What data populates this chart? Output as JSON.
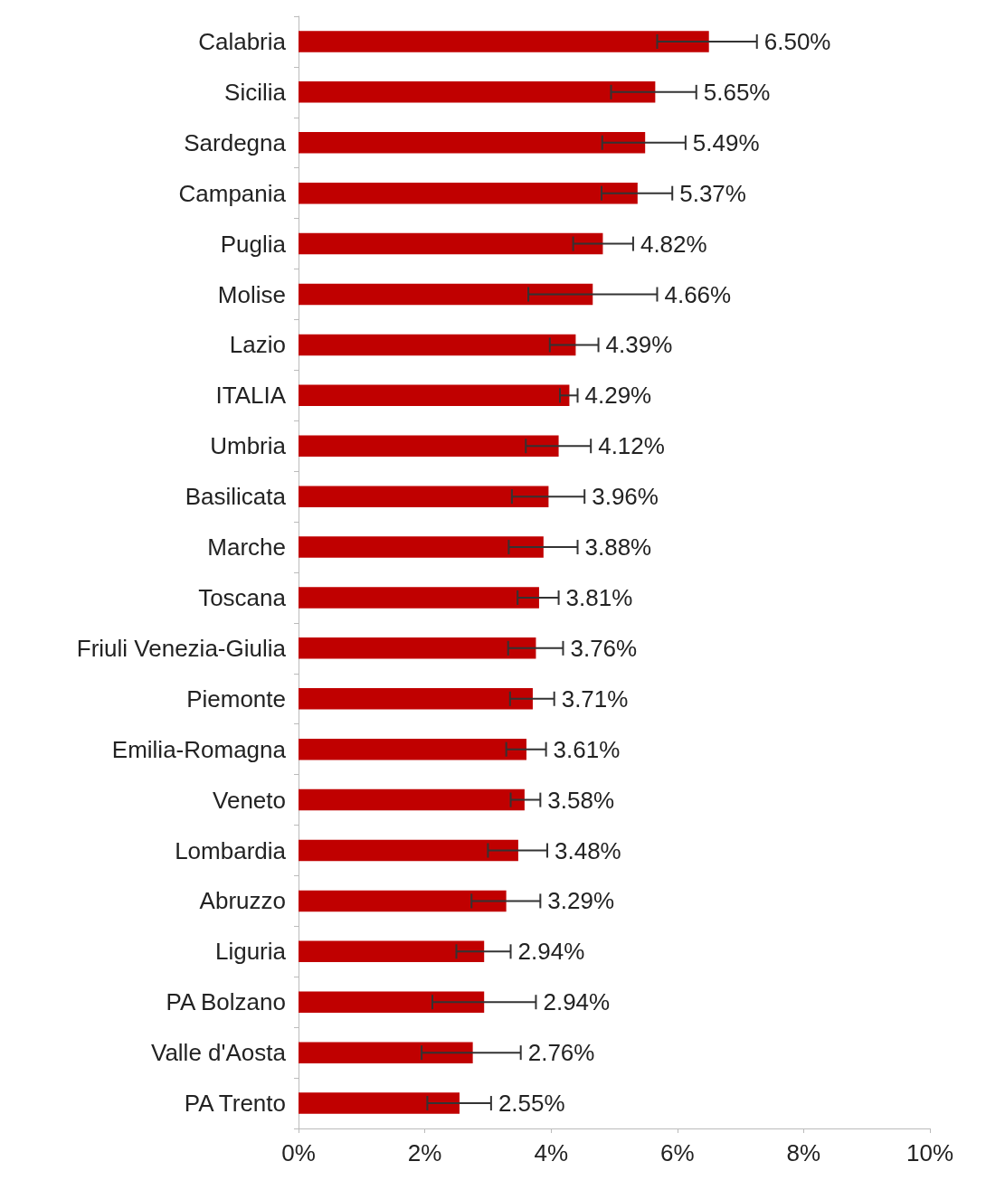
{
  "chart_data": {
    "type": "bar",
    "orientation": "horizontal",
    "color": "#c00000",
    "grid": false,
    "categories": [
      "Calabria",
      "Sicilia",
      "Sardegna",
      "Campania",
      "Puglia",
      "Molise",
      "Lazio",
      "ITALIA",
      "Umbria",
      "Basilicata",
      "Marche",
      "Toscana",
      "Friuli Venezia-Giulia",
      "Piemonte",
      "Emilia-Romagna",
      "Veneto",
      "Lombardia",
      "Abruzzo",
      "Liguria",
      "PA Bolzano",
      "Valle d'Aosta",
      "PA Trento"
    ],
    "values": [
      6.5,
      5.65,
      5.49,
      5.37,
      4.82,
      4.66,
      4.39,
      4.29,
      4.12,
      3.96,
      3.88,
      3.81,
      3.76,
      3.71,
      3.61,
      3.58,
      3.48,
      3.29,
      2.94,
      2.94,
      2.76,
      2.55
    ],
    "value_labels": [
      "6.50%",
      "5.65%",
      "5.49%",
      "5.37%",
      "4.82%",
      "4.66%",
      "4.39%",
      "4.29%",
      "4.12%",
      "3.96%",
      "3.88%",
      "3.81%",
      "3.76%",
      "3.71%",
      "3.61%",
      "3.58%",
      "3.48%",
      "3.29%",
      "2.94%",
      "2.94%",
      "2.76%",
      "2.55%"
    ],
    "errors": [
      [
        5.68,
        7.26
      ],
      [
        4.95,
        6.3
      ],
      [
        4.81,
        6.13
      ],
      [
        4.8,
        5.92
      ],
      [
        4.35,
        5.3
      ],
      [
        3.64,
        5.68
      ],
      [
        3.98,
        4.75
      ],
      [
        4.14,
        4.42
      ],
      [
        3.6,
        4.63
      ],
      [
        3.38,
        4.53
      ],
      [
        3.33,
        4.42
      ],
      [
        3.47,
        4.12
      ],
      [
        3.32,
        4.19
      ],
      [
        3.35,
        4.05
      ],
      [
        3.29,
        3.92
      ],
      [
        3.36,
        3.83
      ],
      [
        3.0,
        3.94
      ],
      [
        2.74,
        3.83
      ],
      [
        2.5,
        3.36
      ],
      [
        2.12,
        3.76
      ],
      [
        1.95,
        3.52
      ],
      [
        2.04,
        3.05
      ]
    ],
    "xlim": [
      0,
      10
    ],
    "xticks": [
      {
        "value": 0,
        "label": "0%"
      },
      {
        "value": 2,
        "label": "2%"
      },
      {
        "value": 4,
        "label": "4%"
      },
      {
        "value": 6,
        "label": "6%"
      },
      {
        "value": 8,
        "label": "8%"
      },
      {
        "value": 10,
        "label": "10%"
      }
    ]
  }
}
